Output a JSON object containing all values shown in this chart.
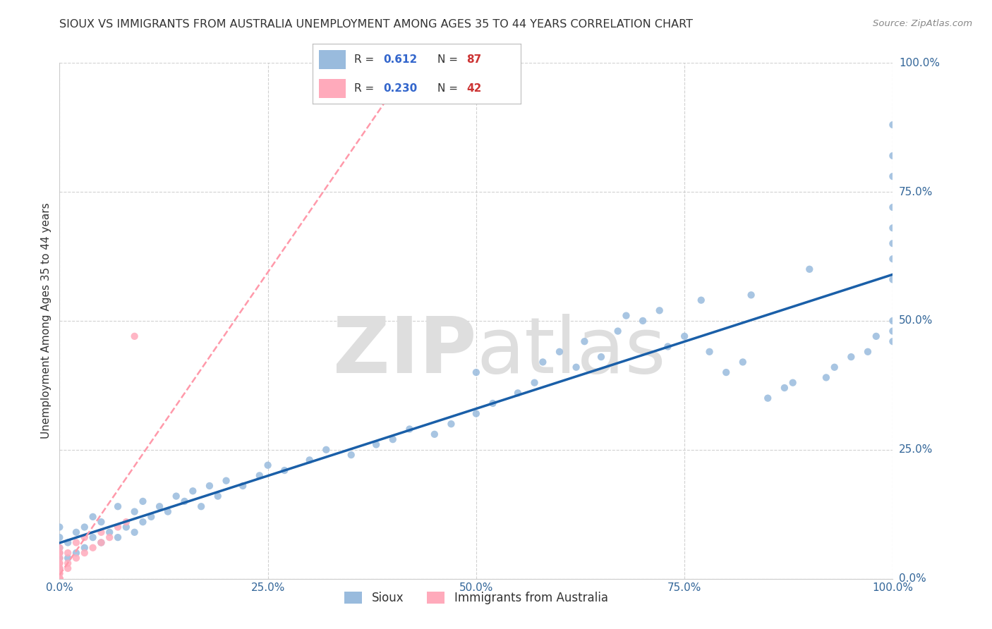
{
  "title": "SIOUX VS IMMIGRANTS FROM AUSTRALIA UNEMPLOYMENT AMONG AGES 35 TO 44 YEARS CORRELATION CHART",
  "source": "Source: ZipAtlas.com",
  "ylabel": "Unemployment Among Ages 35 to 44 years",
  "sioux_R": 0.612,
  "sioux_N": 87,
  "australia_R": 0.23,
  "australia_N": 42,
  "sioux_color": "#99BBDD",
  "australia_color": "#FFAABB",
  "sioux_line_color": "#1a5fa8",
  "australia_line_color": "#FF99AA",
  "background_color": "#FFFFFF",
  "grid_color": "#CCCCCC",
  "watermark_color": "#DEDEDE",
  "x_ticks": [
    0.0,
    0.25,
    0.5,
    0.75,
    1.0
  ],
  "x_tick_labels": [
    "0.0%",
    "25.0%",
    "50.0%",
    "75.0%",
    "100.0%"
  ],
  "y_ticks": [
    0.0,
    0.25,
    0.5,
    0.75,
    1.0
  ],
  "y_tick_labels": [
    "0.0%",
    "25.0%",
    "50.0%",
    "75.0%",
    "100.0%"
  ],
  "legend_label_sioux": "Sioux",
  "legend_label_australia": "Immigrants from Australia",
  "legend_R_color": "#3366CC",
  "legend_N_color": "#CC3333",
  "legend_text_color": "#333333",
  "sioux_x": [
    0.0,
    0.0,
    0.0,
    0.0,
    0.0,
    0.0,
    0.01,
    0.01,
    0.02,
    0.02,
    0.03,
    0.03,
    0.04,
    0.04,
    0.05,
    0.05,
    0.06,
    0.07,
    0.07,
    0.08,
    0.09,
    0.09,
    0.1,
    0.1,
    0.11,
    0.12,
    0.13,
    0.14,
    0.15,
    0.16,
    0.17,
    0.18,
    0.19,
    0.2,
    0.22,
    0.24,
    0.25,
    0.27,
    0.3,
    0.32,
    0.35,
    0.38,
    0.4,
    0.42,
    0.45,
    0.47,
    0.5,
    0.5,
    0.52,
    0.55,
    0.57,
    0.58,
    0.6,
    0.62,
    0.63,
    0.65,
    0.67,
    0.68,
    0.7,
    0.72,
    0.73,
    0.75,
    0.77,
    0.78,
    0.8,
    0.82,
    0.83,
    0.85,
    0.87,
    0.88,
    0.9,
    0.92,
    0.93,
    0.95,
    0.97,
    0.98,
    1.0,
    1.0,
    1.0,
    1.0,
    1.0,
    1.0,
    1.0,
    1.0,
    1.0,
    1.0,
    1.0
  ],
  "sioux_y": [
    0.02,
    0.04,
    0.05,
    0.06,
    0.08,
    0.1,
    0.04,
    0.07,
    0.05,
    0.09,
    0.06,
    0.1,
    0.08,
    0.12,
    0.07,
    0.11,
    0.09,
    0.08,
    0.14,
    0.1,
    0.09,
    0.13,
    0.11,
    0.15,
    0.12,
    0.14,
    0.13,
    0.16,
    0.15,
    0.17,
    0.14,
    0.18,
    0.16,
    0.19,
    0.18,
    0.2,
    0.22,
    0.21,
    0.23,
    0.25,
    0.24,
    0.26,
    0.27,
    0.29,
    0.28,
    0.3,
    0.32,
    0.4,
    0.34,
    0.36,
    0.38,
    0.42,
    0.44,
    0.41,
    0.46,
    0.43,
    0.48,
    0.51,
    0.5,
    0.52,
    0.45,
    0.47,
    0.54,
    0.44,
    0.4,
    0.42,
    0.55,
    0.35,
    0.37,
    0.38,
    0.6,
    0.39,
    0.41,
    0.43,
    0.44,
    0.47,
    0.58,
    0.62,
    0.65,
    0.68,
    0.72,
    0.5,
    0.48,
    0.46,
    0.78,
    0.82,
    0.88
  ],
  "australia_x": [
    0.0,
    0.0,
    0.0,
    0.0,
    0.0,
    0.0,
    0.0,
    0.0,
    0.0,
    0.0,
    0.0,
    0.0,
    0.0,
    0.0,
    0.0,
    0.0,
    0.0,
    0.0,
    0.0,
    0.0,
    0.0,
    0.0,
    0.0,
    0.0,
    0.0,
    0.0,
    0.0,
    0.0,
    0.01,
    0.01,
    0.01,
    0.02,
    0.02,
    0.03,
    0.03,
    0.04,
    0.05,
    0.05,
    0.06,
    0.07,
    0.08,
    0.09
  ],
  "australia_y": [
    0.0,
    0.0,
    0.0,
    0.0,
    0.0,
    0.0,
    0.0,
    0.0,
    0.0,
    0.0,
    0.0,
    0.0,
    0.0,
    0.0,
    0.0,
    0.0,
    0.0,
    0.0,
    0.01,
    0.01,
    0.02,
    0.02,
    0.03,
    0.03,
    0.04,
    0.05,
    0.05,
    0.06,
    0.02,
    0.03,
    0.05,
    0.04,
    0.07,
    0.05,
    0.08,
    0.06,
    0.07,
    0.09,
    0.08,
    0.1,
    0.11,
    0.47
  ]
}
